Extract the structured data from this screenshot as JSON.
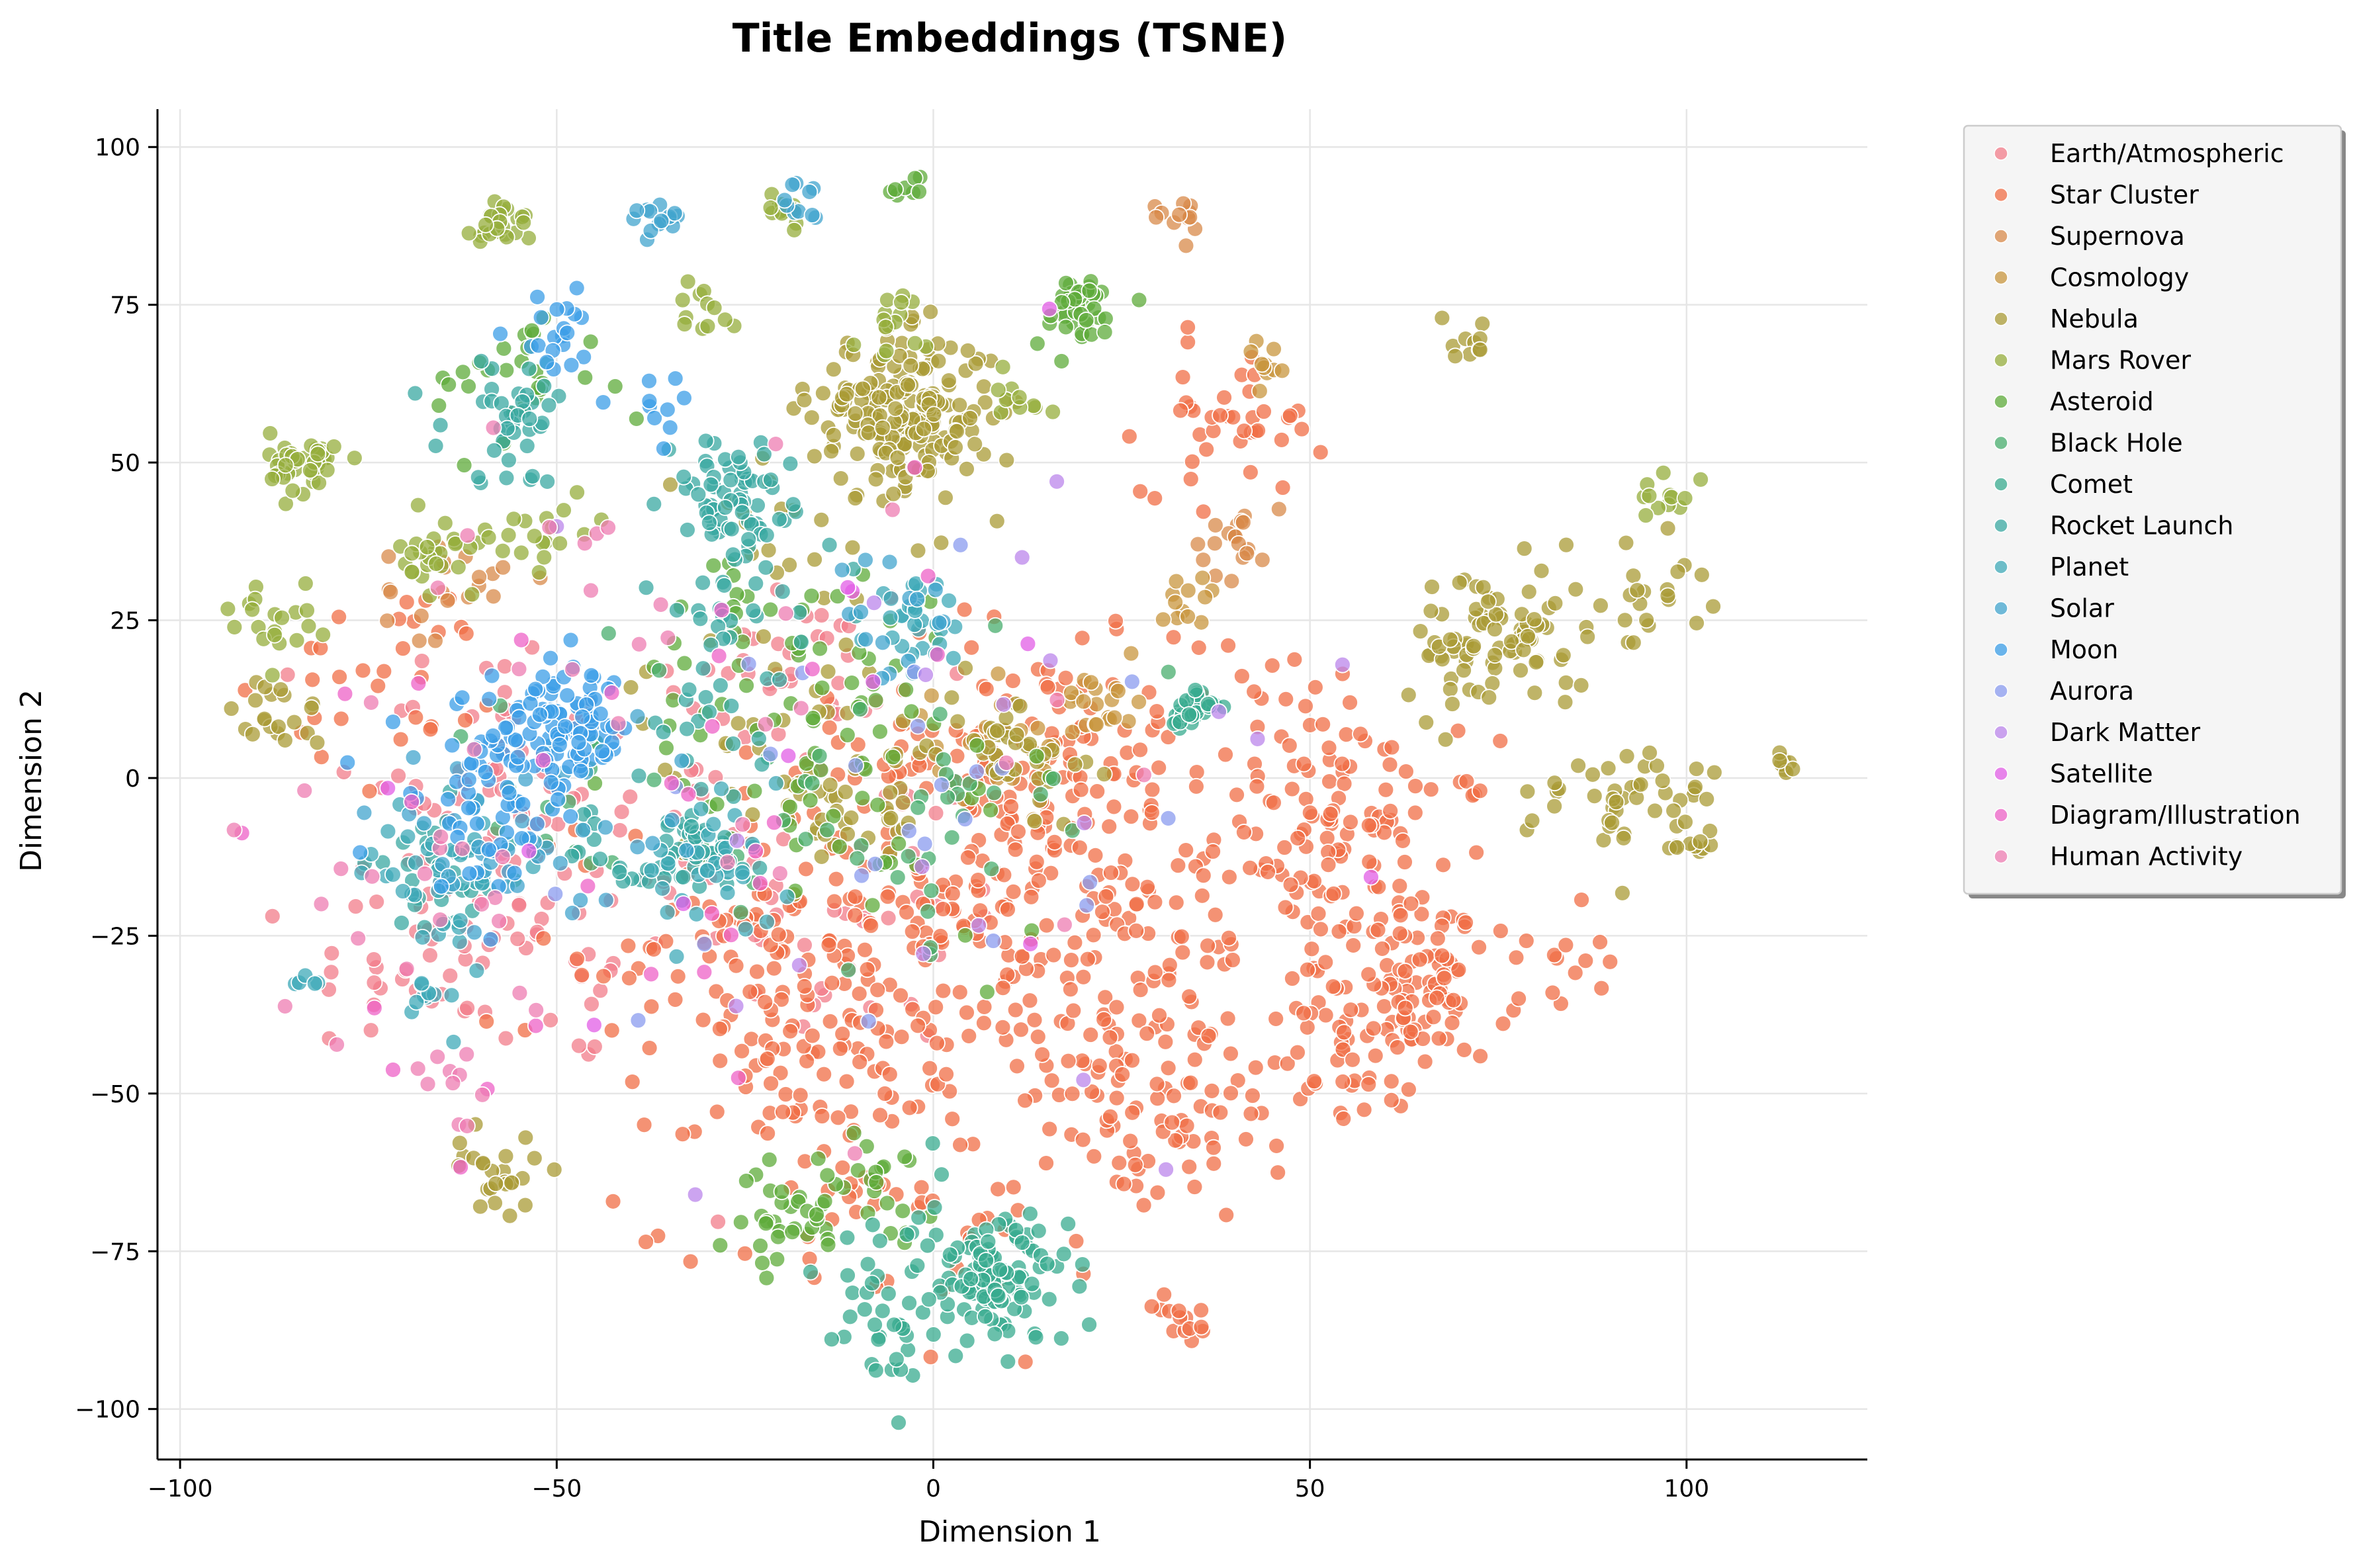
{
  "chart_data": {
    "type": "scatter",
    "title": "Title Embeddings (TSNE)",
    "xlabel": "Dimension 1",
    "ylabel": "Dimension 2",
    "xlim": [
      -103,
      124
    ],
    "ylim": [
      -108,
      106
    ],
    "xticks": [
      -100,
      -50,
      0,
      50,
      100
    ],
    "yticks": [
      -100,
      -75,
      -50,
      -25,
      0,
      25,
      50,
      75,
      100
    ],
    "xtick_labels": [
      "−100",
      "−50",
      "0",
      "50",
      "100"
    ],
    "ytick_labels": [
      "−100",
      "−75",
      "−50",
      "−25",
      "0",
      "25",
      "50",
      "75",
      "100"
    ],
    "grid": true,
    "legend_position": "outside-top-right",
    "point_alpha": 0.75,
    "series": [
      {
        "name": "Earth/Atmospheric",
        "color": "#f17c8a",
        "clusters": [
          [
            -50,
            -20,
            14,
            60
          ],
          [
            -60,
            5,
            10,
            40
          ],
          [
            -20,
            15,
            10,
            40
          ],
          [
            -10,
            -20,
            12,
            40
          ],
          [
            -68,
            -30,
            8,
            30
          ]
        ]
      },
      {
        "name": "Star Cluster",
        "color": "#f06e45",
        "clusters": [
          [
            10,
            -15,
            16,
            220
          ],
          [
            58,
            -10,
            8,
            70
          ],
          [
            62,
            -30,
            8,
            70
          ],
          [
            25,
            -40,
            10,
            80
          ],
          [
            -15,
            -45,
            12,
            90
          ],
          [
            40,
            57,
            6,
            40
          ],
          [
            30,
            -58,
            7,
            50
          ],
          [
            -25,
            -25,
            14,
            80
          ],
          [
            45,
            0,
            12,
            60
          ],
          [
            -5,
            -70,
            12,
            40
          ],
          [
            33,
            -86,
            2,
            14
          ],
          [
            65,
            -35,
            5,
            40
          ],
          [
            55,
            -45,
            5,
            30
          ],
          [
            -70,
            15,
            8,
            30
          ],
          [
            85,
            -30,
            3,
            10
          ],
          [
            10,
            5,
            10,
            60
          ]
        ]
      },
      {
        "name": "Supernova",
        "color": "#d88a4a",
        "clusters": [
          [
            33,
            89,
            2,
            12
          ],
          [
            40,
            38,
            3,
            20
          ],
          [
            -65,
            30,
            4,
            20
          ]
        ]
      },
      {
        "name": "Cosmology",
        "color": "#c8963e",
        "clusters": [
          [
            10,
            5,
            5,
            30
          ],
          [
            23,
            12,
            3,
            20
          ],
          [
            34,
            30,
            2,
            12
          ],
          [
            45,
            65,
            2,
            10
          ]
        ]
      },
      {
        "name": "Nebula",
        "color": "#a99b35",
        "clusters": [
          [
            -4,
            58,
            6,
            200
          ],
          [
            75,
            22,
            6,
            90
          ],
          [
            -10,
            -5,
            5,
            30
          ],
          [
            -58,
            -62,
            3,
            25
          ],
          [
            96,
            -3,
            4,
            25
          ],
          [
            95,
            30,
            4,
            20
          ],
          [
            10,
            5,
            5,
            40
          ],
          [
            -87,
            10,
            3,
            20
          ],
          [
            70,
            70,
            2,
            10
          ],
          [
            -20,
            5,
            10,
            40
          ],
          [
            100,
            -10,
            2,
            10
          ],
          [
            113,
            2,
            1.5,
            8
          ],
          [
            -15,
            40,
            10,
            20
          ],
          [
            85,
            -5,
            5,
            20
          ]
        ]
      },
      {
        "name": "Mars Rover",
        "color": "#95ae3c",
        "clusters": [
          [
            -83,
            50,
            2.5,
            40
          ],
          [
            -65,
            35,
            3,
            30
          ],
          [
            -57,
            88,
            2,
            25
          ],
          [
            -88,
            25,
            3,
            20
          ],
          [
            -50,
            40,
            3,
            15
          ],
          [
            -5,
            72,
            3,
            15
          ],
          [
            97,
            45,
            2,
            12
          ],
          [
            -30,
            75,
            2,
            12
          ],
          [
            -20,
            90,
            2,
            12
          ],
          [
            10,
            60,
            3,
            10
          ]
        ]
      },
      {
        "name": "Asteroid",
        "color": "#5eab3a",
        "clusters": [
          [
            19,
            74,
            3,
            40
          ],
          [
            -20,
            -70,
            4,
            30
          ],
          [
            -8,
            -65,
            4,
            25
          ],
          [
            -10,
            5,
            15,
            60
          ],
          [
            -55,
            62,
            6,
            30
          ],
          [
            -20,
            20,
            10,
            30
          ],
          [
            -3,
            94,
            1.5,
            8
          ]
        ]
      },
      {
        "name": "Black Hole",
        "color": "#48ad6e",
        "clusters": [
          [
            -5,
            -5,
            10,
            40
          ],
          [
            -50,
            -5,
            10,
            20
          ]
        ]
      },
      {
        "name": "Comet",
        "color": "#38ab8f",
        "clusters": [
          [
            8,
            -80,
            5,
            120
          ],
          [
            34,
            11,
            1.5,
            35
          ],
          [
            -5,
            -90,
            5,
            20
          ],
          [
            -5,
            -75,
            8,
            20
          ]
        ]
      },
      {
        "name": "Rocket Launch",
        "color": "#3aa8a2",
        "clusters": [
          [
            -27,
            45,
            4,
            60
          ],
          [
            -55,
            57,
            5,
            40
          ],
          [
            -32,
            -12,
            4,
            40
          ],
          [
            -25,
            30,
            6,
            30
          ],
          [
            -40,
            -10,
            6,
            20
          ],
          [
            -65,
            -15,
            5,
            30
          ],
          [
            -30,
            10,
            6,
            20
          ]
        ]
      },
      {
        "name": "Planet",
        "color": "#3fa9b8",
        "clusters": [
          [
            -65,
            -15,
            5,
            40
          ],
          [
            -30,
            -15,
            5,
            30
          ],
          [
            -2,
            25,
            3,
            30
          ],
          [
            -67,
            -35,
            2,
            10
          ],
          [
            -83,
            -33,
            1,
            5
          ]
        ]
      },
      {
        "name": "Solar",
        "color": "#41a4cd",
        "clusters": [
          [
            -37,
            89,
            2,
            15
          ],
          [
            -45,
            -10,
            8,
            20
          ],
          [
            -62,
            -10,
            6,
            20
          ],
          [
            -18,
            90,
            2,
            10
          ],
          [
            -5,
            25,
            5,
            15
          ]
        ]
      },
      {
        "name": "Moon",
        "color": "#3b9de7",
        "clusters": [
          [
            -50,
            7,
            5,
            110
          ],
          [
            -60,
            -5,
            6,
            40
          ],
          [
            -50,
            70,
            3,
            20
          ],
          [
            -37,
            60,
            3,
            10
          ]
        ]
      },
      {
        "name": "Aurora",
        "color": "#8a9bef",
        "clusters": [
          [
            -20,
            -10,
            20,
            15
          ],
          [
            10,
            0,
            20,
            10
          ]
        ]
      },
      {
        "name": "Dark Matter",
        "color": "#bb86eb",
        "clusters": [
          [
            -10,
            -20,
            30,
            12
          ],
          [
            20,
            5,
            15,
            8
          ]
        ]
      },
      {
        "name": "Satellite",
        "color": "#e15ee6",
        "clusters": [
          [
            -20,
            0,
            30,
            12
          ]
        ]
      },
      {
        "name": "Diagram/Illustration",
        "color": "#ee62c7",
        "clusters": [
          [
            -25,
            10,
            20,
            20
          ],
          [
            -55,
            -30,
            15,
            10
          ]
        ]
      },
      {
        "name": "Human Activity",
        "color": "#ee7cb2",
        "clusters": [
          [
            -30,
            10,
            25,
            30
          ],
          [
            -70,
            -20,
            10,
            20
          ],
          [
            -65,
            -48,
            3,
            10
          ]
        ]
      }
    ]
  }
}
